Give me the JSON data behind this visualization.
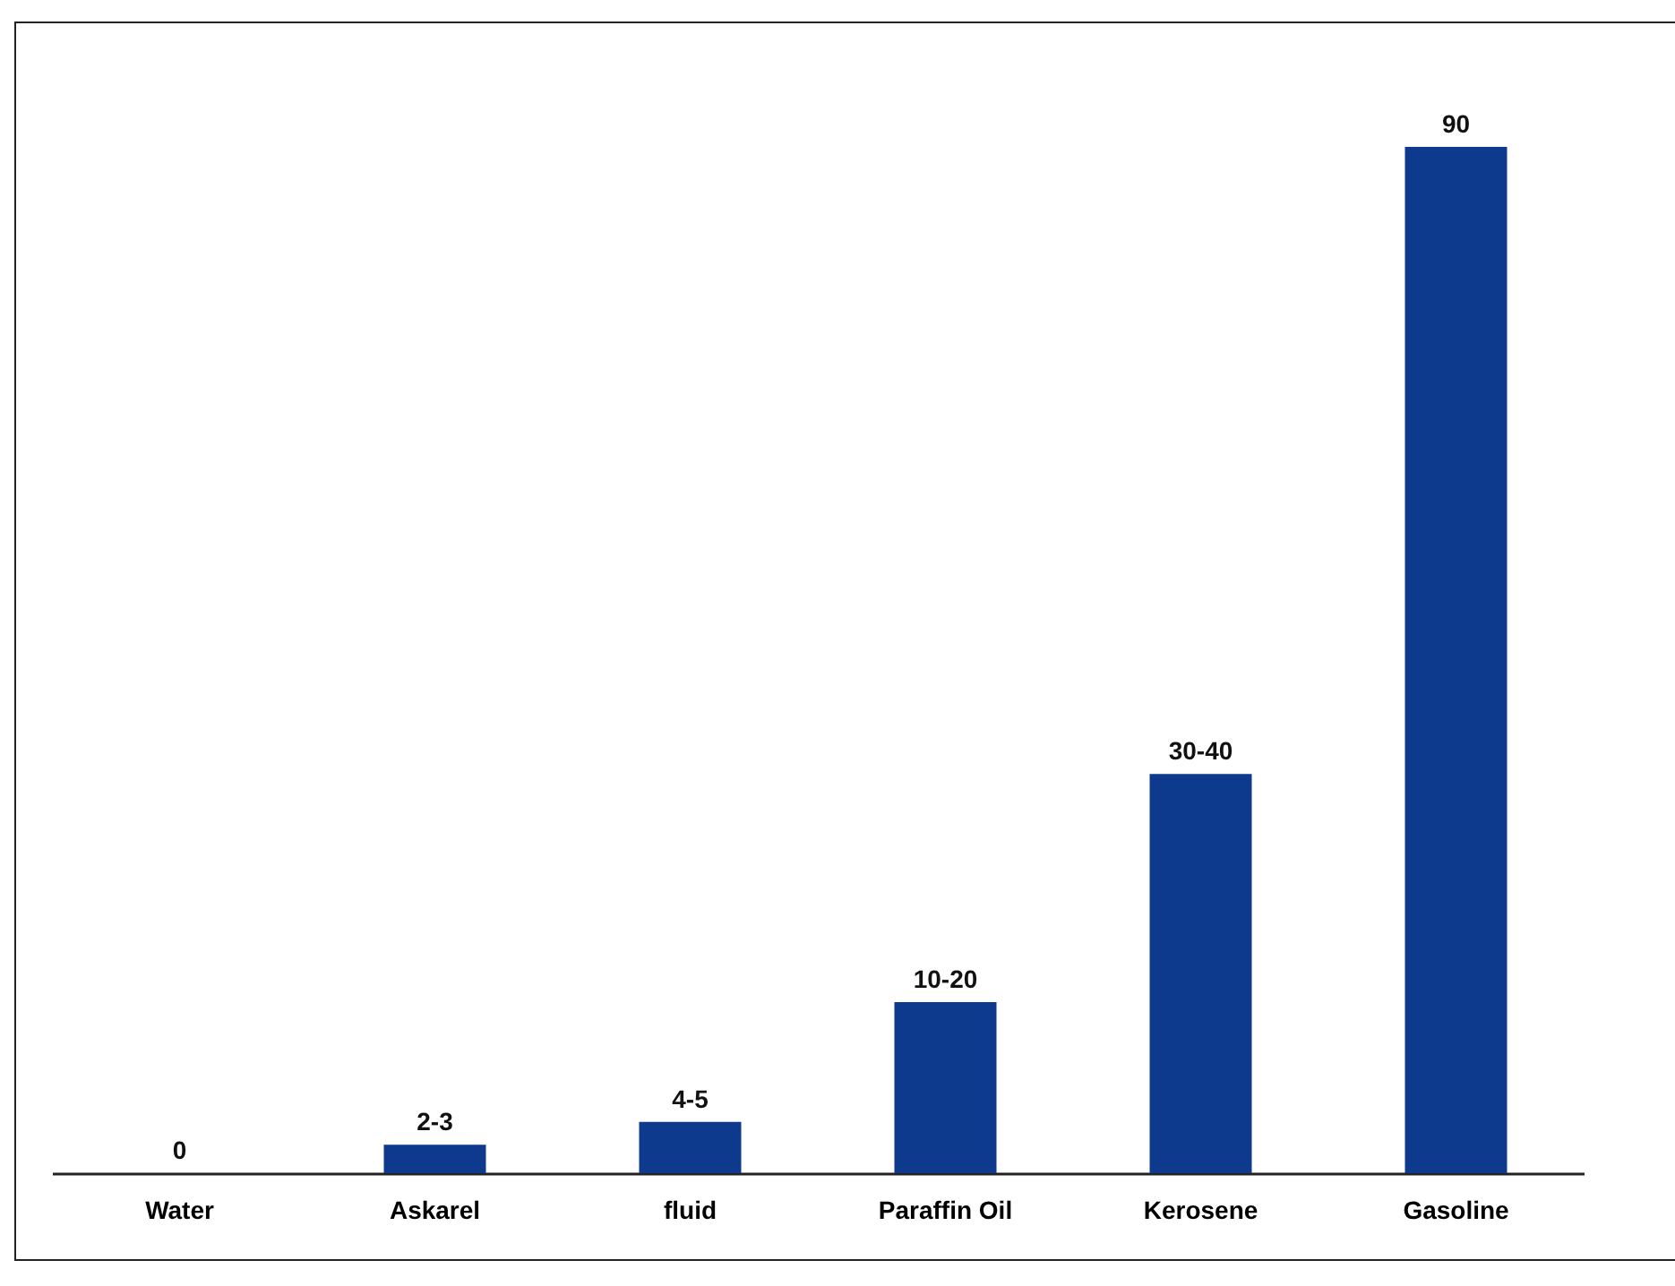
{
  "chart_data": {
    "type": "bar",
    "categories": [
      "Water",
      "Askarel",
      "fluid",
      "Paraffin Oil",
      "Kerosene",
      "Gasoline"
    ],
    "values": [
      0,
      2.5,
      4.5,
      15,
      35,
      90
    ],
    "value_labels": [
      "0",
      "2-3",
      "4-5",
      "10-20",
      "30-40",
      "90"
    ],
    "color": "#0e3a8e",
    "tick_labels": "x",
    "grid": false
  }
}
